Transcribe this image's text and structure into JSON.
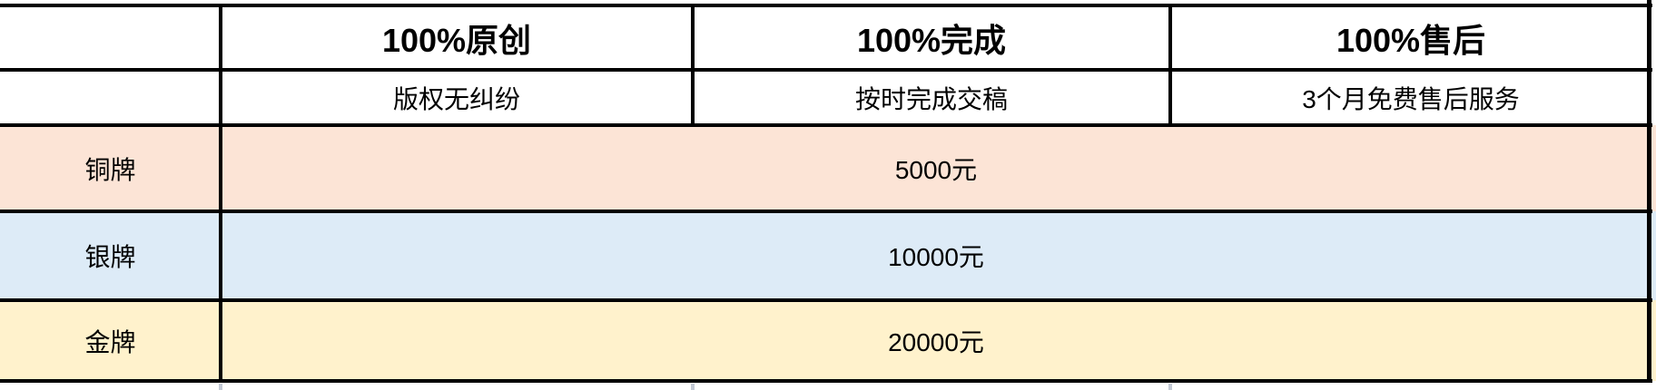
{
  "table": {
    "columns": [
      {
        "header": "",
        "subheader": ""
      },
      {
        "header": "100%原创",
        "subheader": "版权无纠纷"
      },
      {
        "header": "100%完成",
        "subheader": "按时完成交稿"
      },
      {
        "header": "100%售后",
        "subheader": "3个月免费售后服务"
      }
    ],
    "tiers": [
      {
        "label": "铜牌",
        "price": "5000元"
      },
      {
        "label": "银牌",
        "price": "10000元"
      },
      {
        "label": "金牌",
        "price": "20000元"
      }
    ],
    "colors": {
      "border": "#000000",
      "text": "#000000",
      "bronze_row": "#fce4d6",
      "silver_row": "#ddebf7",
      "gold_row": "#fff2cc"
    }
  }
}
